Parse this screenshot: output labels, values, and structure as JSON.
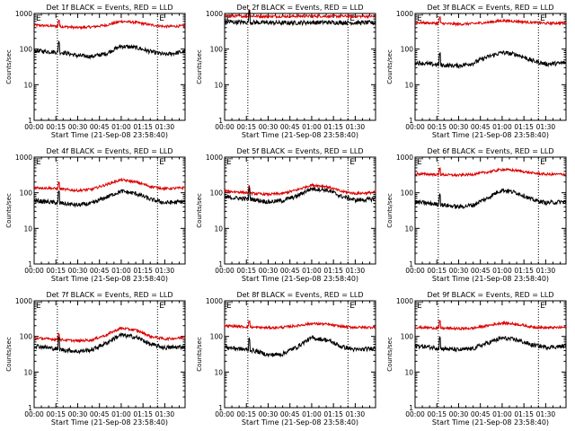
{
  "figure": {
    "yticks": [
      "1",
      "10",
      "100",
      "1000"
    ],
    "xticks": [
      "00:00",
      "00:15",
      "00:30",
      "00:45",
      "01:00",
      "01:15",
      "01:30"
    ]
  },
  "colors": {
    "events": "#000000",
    "lld": "#dd0000"
  },
  "chart_data": [
    {
      "type": "line",
      "title": "Det 1f BLACK = Events, RED = LLD",
      "xlabel": "Start Time (21-Sep-08 23:58:40)",
      "ylabel": "Counts/sec",
      "yscale": "log",
      "ylim": [
        1,
        1000
      ],
      "xlim_minutes": [
        0,
        104
      ],
      "x_minutes": [
        0,
        10,
        20,
        30,
        40,
        50,
        60,
        70,
        80,
        90,
        100,
        104
      ],
      "series": [
        {
          "name": "BLACK = Events",
          "color": "#000000",
          "values": [
            90,
            85,
            80,
            65,
            62,
            75,
            120,
            110,
            85,
            70,
            80,
            85
          ]
        },
        {
          "name": "RED = LLD",
          "color": "#dd0000",
          "values": [
            470,
            450,
            430,
            400,
            420,
            470,
            600,
            560,
            480,
            430,
            440,
            450
          ]
        }
      ],
      "vlines_minutes": [
        16,
        85
      ],
      "spike_minutes": 17,
      "flags": [
        "E",
        "E"
      ]
    },
    {
      "type": "line",
      "title": "Det 2f BLACK = Events, RED = LLD",
      "xlabel": "Start Time (21-Sep-08 23:58:40)",
      "ylabel": "Counts/sec",
      "yscale": "log",
      "ylim": [
        1,
        1000
      ],
      "xlim_minutes": [
        0,
        104
      ],
      "x_minutes": [
        0,
        10,
        20,
        30,
        40,
        50,
        60,
        70,
        80,
        90,
        100,
        104
      ],
      "series": [
        {
          "name": "BLACK = Events",
          "color": "#000000",
          "values": [
            580,
            570,
            560,
            550,
            545,
            550,
            560,
            560,
            555,
            550,
            550,
            550
          ]
        },
        {
          "name": "RED = LLD",
          "color": "#dd0000",
          "values": [
            850,
            840,
            840,
            830,
            830,
            840,
            840,
            840,
            835,
            830,
            830,
            830
          ]
        }
      ],
      "vlines_minutes": [
        16,
        85
      ],
      "spike_minutes": 17,
      "flags": [
        "E",
        "E"
      ]
    },
    {
      "type": "line",
      "title": "Det 3f BLACK = Events, RED = LLD",
      "xlabel": "Start Time (21-Sep-08 23:58:40)",
      "ylabel": "Counts/sec",
      "yscale": "log",
      "ylim": [
        1,
        1000
      ],
      "xlim_minutes": [
        0,
        104
      ],
      "x_minutes": [
        0,
        10,
        20,
        30,
        40,
        50,
        60,
        70,
        80,
        90,
        100,
        104
      ],
      "series": [
        {
          "name": "BLACK = Events",
          "color": "#000000",
          "values": [
            42,
            38,
            35,
            34,
            40,
            60,
            80,
            70,
            48,
            38,
            40,
            42
          ]
        },
        {
          "name": "RED = LLD",
          "color": "#dd0000",
          "values": [
            560,
            540,
            520,
            500,
            520,
            560,
            630,
            600,
            560,
            530,
            540,
            540
          ]
        }
      ],
      "vlines_minutes": [
        16,
        85
      ],
      "spike_minutes": 17,
      "flags": [
        "E",
        "E"
      ]
    },
    {
      "type": "line",
      "title": "Det 4f BLACK = Events, RED = LLD",
      "xlabel": "Start Time (21-Sep-08 23:58:40)",
      "ylabel": "Counts/sec",
      "yscale": "log",
      "ylim": [
        1,
        1000
      ],
      "xlim_minutes": [
        0,
        104
      ],
      "x_minutes": [
        0,
        10,
        20,
        30,
        40,
        50,
        60,
        70,
        80,
        90,
        100,
        104
      ],
      "series": [
        {
          "name": "BLACK = Events",
          "color": "#000000",
          "values": [
            60,
            55,
            50,
            45,
            50,
            75,
            110,
            95,
            65,
            52,
            55,
            58
          ]
        },
        {
          "name": "RED = LLD",
          "color": "#dd0000",
          "values": [
            140,
            135,
            125,
            115,
            125,
            170,
            230,
            200,
            150,
            130,
            135,
            140
          ]
        }
      ],
      "vlines_minutes": [
        16,
        85
      ],
      "spike_minutes": 17,
      "flags": [
        "E",
        "E"
      ]
    },
    {
      "type": "line",
      "title": "Det 5f BLACK = Events, RED = LLD",
      "xlabel": "Start Time (21-Sep-08 23:58:40)",
      "ylabel": "Counts/sec",
      "yscale": "log",
      "ylim": [
        1,
        1000
      ],
      "xlim_minutes": [
        0,
        104
      ],
      "x_minutes": [
        0,
        10,
        20,
        30,
        40,
        50,
        60,
        70,
        80,
        90,
        100,
        104
      ],
      "series": [
        {
          "name": "BLACK = Events",
          "color": "#000000",
          "values": [
            75,
            70,
            65,
            55,
            60,
            80,
            130,
            120,
            80,
            62,
            65,
            70
          ]
        },
        {
          "name": "RED = LLD",
          "color": "#dd0000",
          "values": [
            110,
            105,
            95,
            90,
            95,
            120,
            165,
            150,
            110,
            95,
            100,
            105
          ]
        }
      ],
      "vlines_minutes": [
        16,
        85
      ],
      "spike_minutes": 17,
      "flags": [
        "E",
        "E"
      ]
    },
    {
      "type": "line",
      "title": "Det 6f BLACK = Events, RED = LLD",
      "xlabel": "Start Time (21-Sep-08 23:58:40)",
      "ylabel": "Counts/sec",
      "yscale": "log",
      "ylim": [
        1,
        1000
      ],
      "xlim_minutes": [
        0,
        104
      ],
      "x_minutes": [
        0,
        10,
        20,
        30,
        40,
        50,
        60,
        70,
        80,
        90,
        100,
        104
      ],
      "series": [
        {
          "name": "BLACK = Events",
          "color": "#000000",
          "values": [
            55,
            50,
            45,
            40,
            45,
            70,
            120,
            100,
            65,
            52,
            55,
            55
          ]
        },
        {
          "name": "RED = LLD",
          "color": "#dd0000",
          "values": [
            340,
            330,
            320,
            310,
            330,
            380,
            450,
            420,
            360,
            330,
            330,
            330
          ]
        }
      ],
      "vlines_minutes": [
        16,
        85
      ],
      "spike_minutes": 17,
      "flags": [
        "E",
        "E"
      ]
    },
    {
      "type": "line",
      "title": "Det 7f BLACK = Events, RED = LLD",
      "xlabel": "Start Time (21-Sep-08 23:58:40)",
      "ylabel": "Counts/sec",
      "yscale": "log",
      "ylim": [
        1,
        1000
      ],
      "xlim_minutes": [
        0,
        104
      ],
      "x_minutes": [
        0,
        10,
        20,
        30,
        40,
        50,
        60,
        70,
        80,
        90,
        100,
        104
      ],
      "series": [
        {
          "name": "BLACK = Events",
          "color": "#000000",
          "values": [
            55,
            48,
            42,
            38,
            42,
            65,
            110,
            95,
            60,
            48,
            50,
            52
          ]
        },
        {
          "name": "RED = LLD",
          "color": "#dd0000",
          "values": [
            90,
            85,
            80,
            75,
            80,
            110,
            170,
            150,
            100,
            85,
            90,
            95
          ]
        }
      ],
      "vlines_minutes": [
        16,
        85
      ],
      "spike_minutes": 17,
      "flags": [
        "E",
        "E"
      ]
    },
    {
      "type": "line",
      "title": "Det 8f BLACK = Events, RED = LLD",
      "xlabel": "Start Time (21-Sep-08 23:58:40)",
      "ylabel": "Counts/sec",
      "yscale": "log",
      "ylim": [
        1,
        1000
      ],
      "xlim_minutes": [
        0,
        104
      ],
      "x_minutes": [
        0,
        10,
        20,
        30,
        40,
        50,
        60,
        70,
        80,
        90,
        100,
        104
      ],
      "series": [
        {
          "name": "BLACK = Events",
          "color": "#000000",
          "values": [
            50,
            45,
            40,
            30,
            32,
            50,
            90,
            80,
            52,
            42,
            45,
            48
          ]
        },
        {
          "name": "RED = LLD",
          "color": "#dd0000",
          "values": [
            200,
            190,
            180,
            175,
            180,
            200,
            230,
            220,
            190,
            180,
            180,
            185
          ]
        }
      ],
      "vlines_minutes": [
        16,
        85
      ],
      "spike_minutes": 17,
      "flags": [
        "E",
        "E"
      ]
    },
    {
      "type": "line",
      "title": "Det 9f BLACK = Events, RED = LLD",
      "xlabel": "Start Time (21-Sep-08 23:58:40)",
      "ylabel": "Counts/sec",
      "yscale": "log",
      "ylim": [
        1,
        1000
      ],
      "xlim_minutes": [
        0,
        104
      ],
      "x_minutes": [
        0,
        10,
        20,
        30,
        40,
        50,
        60,
        70,
        80,
        90,
        100,
        104
      ],
      "series": [
        {
          "name": "BLACK = Events",
          "color": "#000000",
          "values": [
            55,
            50,
            45,
            42,
            45,
            65,
            90,
            80,
            58,
            50,
            52,
            55
          ]
        },
        {
          "name": "RED = LLD",
          "color": "#dd0000",
          "values": [
            180,
            175,
            170,
            165,
            170,
            200,
            240,
            220,
            185,
            175,
            178,
            180
          ]
        }
      ],
      "vlines_minutes": [
        16,
        85
      ],
      "spike_minutes": 17,
      "flags": [
        "E",
        "E"
      ]
    }
  ]
}
